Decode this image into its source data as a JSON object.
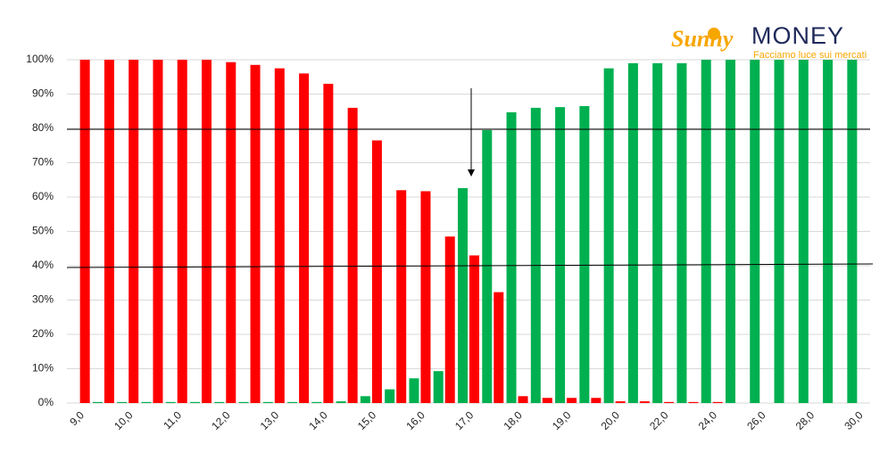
{
  "chart_data": {
    "type": "bar",
    "categories": [
      "9,0",
      null,
      "10,0",
      null,
      "11,0",
      null,
      "12,0",
      null,
      "13,0",
      null,
      "14,0",
      null,
      "15,0",
      null,
      "16,0",
      null,
      "17,0",
      null,
      "18,0",
      null,
      "19,0",
      null,
      "20,0",
      null,
      "22,0",
      null,
      "24,0",
      null,
      "26,0",
      null,
      "28,0",
      null,
      "30,0"
    ],
    "series": [
      {
        "color": "#00b050",
        "values": [
          0,
          0.3,
          0.3,
          0.3,
          0.3,
          0.3,
          0.3,
          0.3,
          0.3,
          0.3,
          0.3,
          0.5,
          2,
          4,
          7.2,
          9.3,
          62.6,
          79.5,
          84.7,
          86,
          86.2,
          86.5,
          97.5,
          99,
          99,
          99,
          100,
          100,
          100,
          100,
          100,
          100,
          100
        ]
      },
      {
        "color": "#ff0000",
        "values": [
          100,
          100,
          100,
          100,
          100,
          100,
          99.3,
          98.5,
          97.5,
          96,
          93,
          86,
          76.5,
          62,
          61.7,
          48.5,
          43,
          32.3,
          2,
          1.5,
          1.5,
          1.5,
          0.5,
          0.5,
          0.3,
          0.3,
          0.3,
          0,
          0,
          0,
          0,
          0,
          0
        ]
      }
    ],
    "ylim": [
      0,
      100
    ],
    "yticks": [
      {
        "value": 0,
        "label": "0%"
      },
      {
        "value": 10,
        "label": "10%"
      },
      {
        "value": 20,
        "label": "20%"
      },
      {
        "value": 30,
        "label": "30%"
      },
      {
        "value": 40,
        "label": "40%"
      },
      {
        "value": 50,
        "label": "50%"
      },
      {
        "value": 60,
        "label": "60%"
      },
      {
        "value": 70,
        "label": "70%"
      },
      {
        "value": 80,
        "label": "80%"
      },
      {
        "value": 90,
        "label": "90%"
      },
      {
        "value": 100,
        "label": "100%"
      }
    ],
    "grid": true,
    "logo": {
      "script": "Sunny",
      "word": "MONEY",
      "tagline": "Facciamo luce sui mercati"
    }
  }
}
